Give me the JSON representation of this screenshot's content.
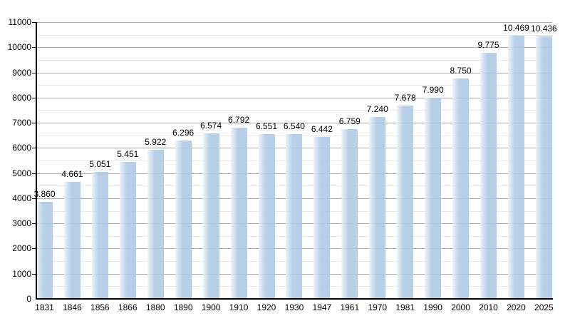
{
  "chart_data": {
    "type": "bar",
    "title": "",
    "categories": [
      "1831",
      "1846",
      "1856",
      "1866",
      "1880",
      "1890",
      "1900",
      "1910",
      "1920",
      "1930",
      "1947",
      "1961",
      "1970",
      "1981",
      "1990",
      "2000",
      "2010",
      "2020",
      "2025"
    ],
    "values": [
      3860,
      4661,
      5051,
      5451,
      5922,
      6296,
      6574,
      6792,
      6551,
      6540,
      6442,
      6759,
      7240,
      7678,
      7990,
      8750,
      9775,
      10469,
      10436
    ],
    "value_labels": [
      "3.860",
      "4.661",
      "5.051",
      "5.451",
      "5.922",
      "6.296",
      "6.574",
      "6.792",
      "6.551",
      "6.540",
      "6.442",
      "6.759",
      "7.240",
      "7.678",
      "7.990",
      "8.750",
      "9.775",
      "10.469",
      "10.436"
    ],
    "xlabel": "",
    "ylabel": "",
    "ylim": [
      0,
      11000
    ],
    "y_major_step": 1000,
    "y_minor_step": 500,
    "y_tick_labels": [
      "0",
      "1000",
      "2000",
      "3000",
      "4000",
      "5000",
      "6000",
      "7000",
      "8000",
      "9000",
      "10000",
      "11000"
    ],
    "grid": "major-and-minor-horizontal",
    "legend": "none",
    "colors": {
      "bar_fill": "rgba(173,201,228,0.88)",
      "bar_left_highlight": "rgba(235,242,249,0.88)",
      "grid_major": "#ababab",
      "grid_minor": "#e9e9e9",
      "axis": "#000000",
      "label_text": "#000000",
      "background": "#ffffff"
    }
  }
}
